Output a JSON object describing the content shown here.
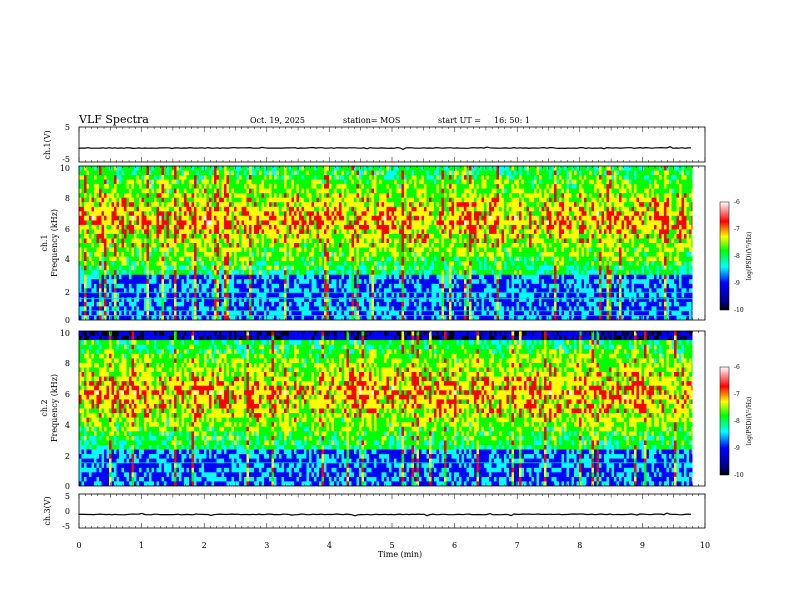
{
  "chart_data": {
    "type": "heatmap",
    "title": "VLF Spectra",
    "header": {
      "date": "Oct. 19, 2025",
      "station": "station= MOS",
      "start_label": "start  UT  =",
      "start_time": "16: 50: 1"
    },
    "x_axis": {
      "label": "Time  (min)",
      "range": [
        0,
        10
      ],
      "ticks": [
        "0",
        "1",
        "2",
        "3",
        "4",
        "5",
        "6",
        "7",
        "8",
        "9",
        "10"
      ]
    },
    "panels": [
      {
        "id": "ch1-waveform",
        "type": "line",
        "ylabel": "ch.1(V)",
        "yrange": [
          -5,
          5
        ],
        "yticks": [
          "5",
          "-5"
        ],
        "baseline_value": -1,
        "data_end_min": 9.8
      },
      {
        "id": "ch1-spectrogram",
        "type": "heatmap",
        "ylabel_line1": "ch.1",
        "ylabel_line2": "Frequency (kHz)",
        "yrange": [
          0,
          10
        ],
        "yticks": [
          "0",
          "2",
          "4",
          "6",
          "8",
          "10"
        ],
        "band_khz": [
          3,
          10
        ],
        "lines_khz": [
          0.3,
          0.6,
          1.4,
          1.8
        ],
        "data_end_min": 9.8,
        "colorbar": {
          "label": "log(PSD)(V²/Hz)",
          "range": [
            -10,
            -6
          ],
          "ticks": [
            "-6",
            "-7",
            "-8",
            "-9",
            "-10"
          ]
        }
      },
      {
        "id": "ch2-spectrogram",
        "type": "heatmap",
        "ylabel_line1": "ch.2",
        "ylabel_line2": "Frequency (kHz)",
        "yrange": [
          0,
          10
        ],
        "yticks": [
          "0",
          "2",
          "4",
          "6",
          "8",
          "10"
        ],
        "band_khz": [
          2.5,
          9.5
        ],
        "lines_khz": [
          1.5
        ],
        "data_end_min": 9.8,
        "colorbar": {
          "label": "log(PSD)(V²/Hz)",
          "range": [
            -10,
            -6
          ],
          "ticks": [
            "-6",
            "-7",
            "-8",
            "-9",
            "-10"
          ]
        }
      },
      {
        "id": "ch3-waveform",
        "type": "line",
        "ylabel": "ch.3(V)",
        "yrange": [
          -5,
          5
        ],
        "yticks": [
          "5",
          "0",
          "-5"
        ],
        "baseline_value": -1,
        "data_end_min": 9.8
      }
    ],
    "colors": {
      "colormap": [
        "#000000",
        "#00008b",
        "#0000ff",
        "#00ffff",
        "#00ff00",
        "#ffff00",
        "#ff0000",
        "#ffffff"
      ],
      "trace": "#000000"
    }
  }
}
